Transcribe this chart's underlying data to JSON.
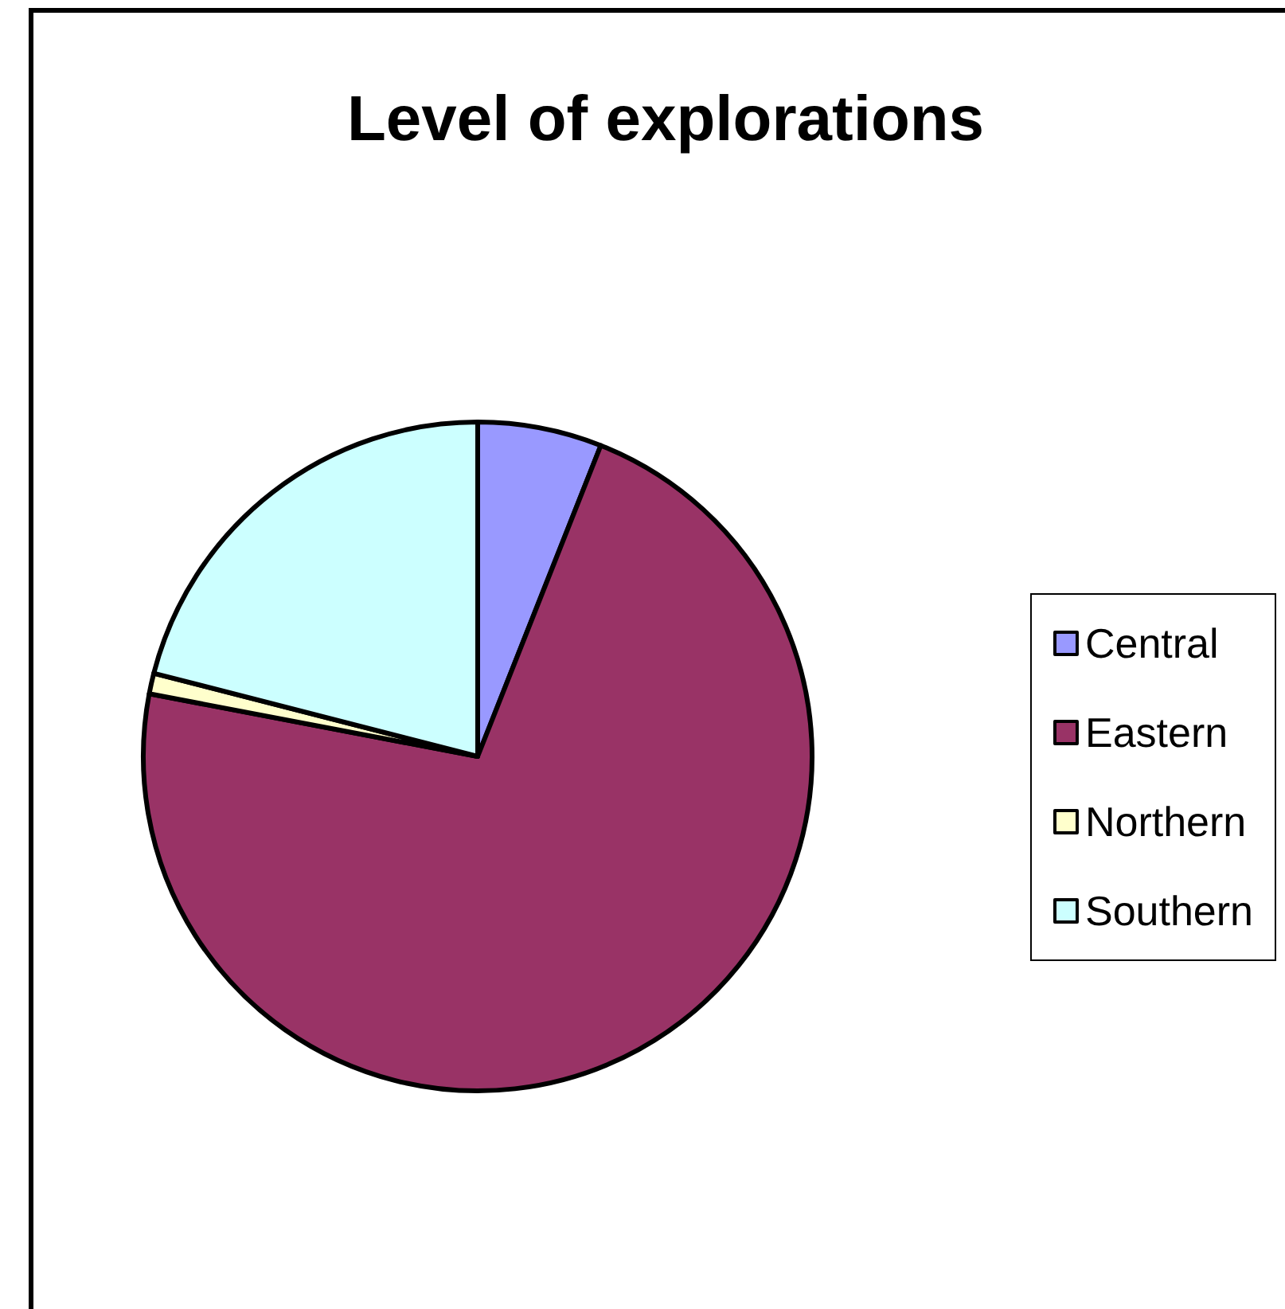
{
  "chart_data": {
    "type": "pie",
    "title": "Level of explorations",
    "categories": [
      "Central",
      "Eastern",
      "Northern",
      "Southern"
    ],
    "values": [
      6,
      72,
      1,
      21
    ],
    "colors": [
      "#9999ff",
      "#993366",
      "#ffffcc",
      "#ccffff"
    ],
    "legend": "right"
  }
}
